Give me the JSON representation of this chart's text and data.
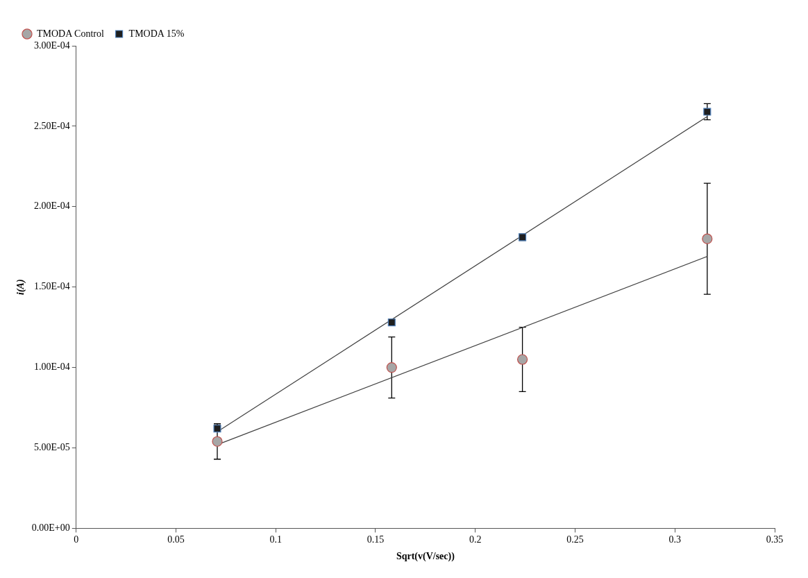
{
  "chart_data": {
    "type": "scatter",
    "xlabel": "Sqrt(v(V/sec))",
    "ylabel": "i(A)",
    "xlim": [
      0,
      0.35
    ],
    "xticks": [
      0,
      0.05,
      0.1,
      0.15,
      0.2,
      0.25,
      0.3,
      0.35
    ],
    "ylim": [
      0,
      0.0003
    ],
    "yticks": [
      {
        "value": 0,
        "label": "0.00E+00"
      },
      {
        "value": 5e-05,
        "label": "5.00E-05"
      },
      {
        "value": 0.0001,
        "label": "1.00E-04"
      },
      {
        "value": 0.00015,
        "label": "1.50E-04"
      },
      {
        "value": 0.0002,
        "label": "2.00E-04"
      },
      {
        "value": 0.00025,
        "label": "2.50E-04"
      },
      {
        "value": 0.0003,
        "label": "3.00E-04"
      }
    ],
    "grid": false,
    "legend": "top left",
    "series": [
      {
        "name": "TMODA Control",
        "marker": "circle",
        "color": "#a6a6a6",
        "x": [
          0.0707,
          0.1581,
          0.2236,
          0.3162
        ],
        "values": [
          5.4e-05,
          0.0001,
          0.000105,
          0.00018
        ],
        "errors": [
          1.1e-05,
          1.9e-05,
          2e-05,
          3.45e-05
        ]
      },
      {
        "name": "TMODA 15%",
        "marker": "square",
        "color": "#1f1f1f",
        "x": [
          0.0707,
          0.1581,
          0.2236,
          0.3162
        ],
        "values": [
          6.2e-05,
          0.000128,
          0.000181,
          0.000259
        ],
        "errors": [
          2e-06,
          2e-06,
          2e-06,
          5e-06
        ]
      },
      {
        "type": "line",
        "marker": "none",
        "color": "#404040",
        "x": [
          0.0707,
          0.3162
        ],
        "values": [
          5.2e-05,
          0.000169
        ]
      },
      {
        "type": "line",
        "marker": "none",
        "color": "#404040",
        "x": [
          0.0707,
          0.3162
        ],
        "values": [
          6e-05,
          0.000256
        ]
      }
    ]
  }
}
